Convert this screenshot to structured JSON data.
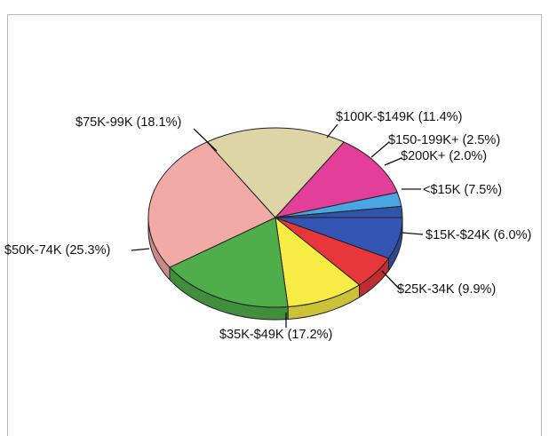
{
  "chart_data": {
    "type": "pie",
    "title": "",
    "slices": [
      {
        "label": "<$15K (7.5%)",
        "value": 7.5,
        "color": "#3455b4"
      },
      {
        "label": "$15K-$24K (6.0%)",
        "value": 6.0,
        "color": "#e8373a"
      },
      {
        "label": "$25K-34K (9.9%)",
        "value": 9.9,
        "color": "#f7ec44"
      },
      {
        "label": "$35K-$49K (17.2%)",
        "value": 17.2,
        "color": "#4fae4a"
      },
      {
        "label": "$50K-74K (25.3%)",
        "value": 25.3,
        "color": "#f2aaa6"
      },
      {
        "label": "$75K-99K (18.1%)",
        "value": 18.1,
        "color": "#ddd5a6"
      },
      {
        "label": "$100K-$149K (11.4%)",
        "value": 11.4,
        "color": "#e23e9a"
      },
      {
        "label": "$150-199K+ (2.5%)",
        "value": 2.5,
        "color": "#4aa6e2"
      },
      {
        "label": "$200K+ (2.0%)",
        "value": 2.0,
        "color": "#2f54a8"
      }
    ],
    "legend": "none"
  }
}
